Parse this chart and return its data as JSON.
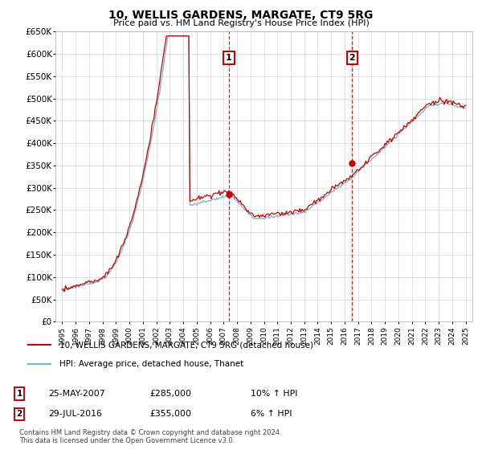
{
  "title": "10, WELLIS GARDENS, MARGATE, CT9 5RG",
  "subtitle": "Price paid vs. HM Land Registry's House Price Index (HPI)",
  "ylim": [
    0,
    650000
  ],
  "yticks": [
    0,
    50000,
    100000,
    150000,
    200000,
    250000,
    300000,
    350000,
    400000,
    450000,
    500000,
    550000,
    600000,
    650000
  ],
  "xlim_start": 1994.5,
  "xlim_end": 2025.5,
  "legend_line1": "10, WELLIS GARDENS, MARGATE, CT9 5RG (detached house)",
  "legend_line2": "HPI: Average price, detached house, Thanet",
  "annotation1_label": "1",
  "annotation1_date": "25-MAY-2007",
  "annotation1_price": "£285,000",
  "annotation1_hpi": "10% ↑ HPI",
  "annotation1_year": 2007.38,
  "annotation1_price_val": 285000,
  "annotation2_label": "2",
  "annotation2_date": "29-JUL-2016",
  "annotation2_price": "£355,000",
  "annotation2_hpi": "6% ↑ HPI",
  "annotation2_year": 2016.57,
  "annotation2_price_val": 355000,
  "footer": "Contains HM Land Registry data © Crown copyright and database right 2024.\nThis data is licensed under the Open Government Licence v3.0.",
  "line_color_red": "#cc0000",
  "line_color_blue": "#7ab0d4",
  "marker_color": "#cc0000",
  "vline_color": "#cc0000",
  "background_color": "#ffffff",
  "grid_color": "#cccccc",
  "annotation_box_color": "#cc0000"
}
